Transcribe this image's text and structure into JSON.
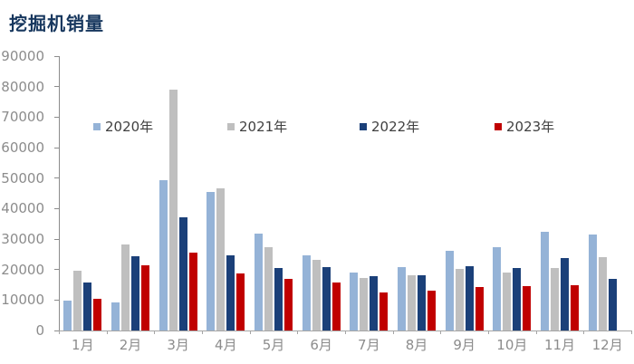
{
  "title": "挖掘机销量",
  "colors": {
    "title": "#17375E",
    "axis_line": "#8c8c8c",
    "tick_label": "#8c8c8c",
    "legend_text": "#404040"
  },
  "chart_data": {
    "type": "bar",
    "title": "挖掘机销量",
    "categories": [
      "1月",
      "2月",
      "3月",
      "4月",
      "5月",
      "6月",
      "7月",
      "8月",
      "9月",
      "10月",
      "11月",
      "12月"
    ],
    "series": [
      {
        "name": "2020年",
        "color": "#95B3D7",
        "values": [
          9942,
          9280,
          49408,
          45426,
          31744,
          24625,
          19110,
          20939,
          26034,
          27331,
          32236,
          31530
        ]
      },
      {
        "name": "2021年",
        "color": "#BFBFBF",
        "values": [
          19601,
          28305,
          79035,
          46572,
          27220,
          23100,
          17345,
          18075,
          20085,
          18964,
          20444,
          24038
        ]
      },
      {
        "name": "2022年",
        "color": "#1B4079",
        "values": [
          15607,
          24483,
          37085,
          24534,
          20624,
          20761,
          17939,
          18076,
          21187,
          20501,
          23680,
          16869
        ]
      },
      {
        "name": "2023年",
        "color": "#C00000",
        "values": [
          10443,
          21450,
          25578,
          18828,
          16809,
          15766,
          12606,
          13104,
          14283,
          14584,
          14894,
          null
        ]
      }
    ],
    "xlabel": "",
    "ylabel": "",
    "ylim": [
      0,
      90000
    ],
    "yticks": [
      0,
      10000,
      20000,
      30000,
      40000,
      50000,
      60000,
      70000,
      80000,
      90000
    ],
    "grid": false,
    "legend_position": "inside-top-horizontal"
  }
}
